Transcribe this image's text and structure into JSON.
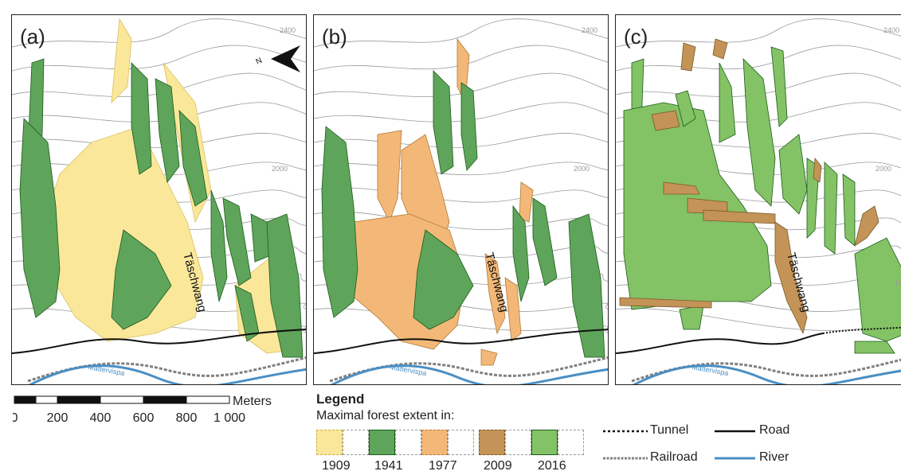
{
  "panels": [
    {
      "label": "(a)"
    },
    {
      "label": "(b)"
    },
    {
      "label": "(c)"
    }
  ],
  "place_name": "Täschwang",
  "river_name": "Mattervispa",
  "contour_labels": [
    "2400",
    "2000",
    "1800"
  ],
  "north_label": "N",
  "scale": {
    "unit": "Meters",
    "ticks": [
      "0",
      "200",
      "400",
      "600",
      "800",
      "1 000"
    ]
  },
  "legend": {
    "title": "Legend",
    "subtitle": "Maximal forest extent in:",
    "years": [
      {
        "year": "1909",
        "color": "#fbe79a"
      },
      {
        "year": "1941",
        "color": "#5ea45a"
      },
      {
        "year": "1977",
        "color": "#f3b877"
      },
      {
        "year": "2009",
        "color": "#c49357"
      },
      {
        "year": "2016",
        "color": "#84c266"
      }
    ],
    "lines": [
      {
        "label": "Tunnel",
        "style": "dotted-black"
      },
      {
        "label": "Road",
        "style": "solid-black"
      },
      {
        "label": "Railroad",
        "style": "dashed-grey"
      },
      {
        "label": "River",
        "style": "solid-blue"
      }
    ]
  },
  "colors": {
    "contour": "#9a9a9a",
    "road": "#111111",
    "railroad": "#808080",
    "river": "#4a8fc4",
    "outline": "#1a5c1a"
  }
}
